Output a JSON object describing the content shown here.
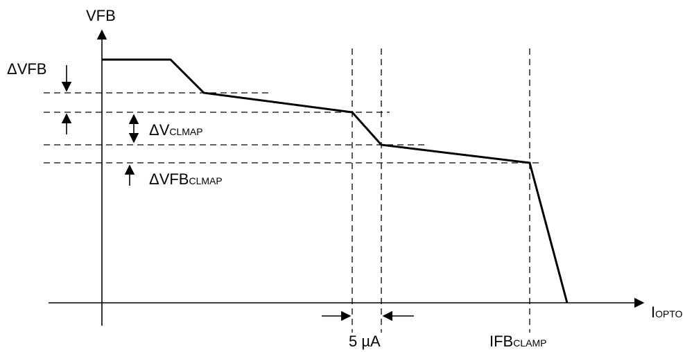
{
  "diagram": {
    "y_axis_label": "VFB",
    "x_axis_label": {
      "main": "I",
      "sub": "OPTO"
    },
    "labels": {
      "delta_vfb": "ΔVFB",
      "delta_vclmap": {
        "main": "ΔV",
        "sub": "CLMAP"
      },
      "delta_vfb_clmap": {
        "main": "ΔVFB",
        "sub": "CLMAP"
      },
      "current_step": "5 µA",
      "ifb_clamp": {
        "main": "IFB",
        "sub": "CLAMP"
      }
    }
  }
}
